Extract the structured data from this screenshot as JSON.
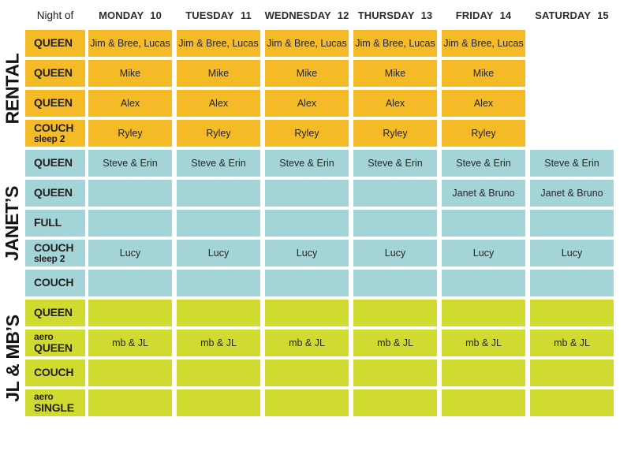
{
  "header": {
    "corner_label": "Night of",
    "days": [
      {
        "name": "MONDAY",
        "date": "10"
      },
      {
        "name": "TUESDAY",
        "date": "11"
      },
      {
        "name": "WEDNESDAY",
        "date": "12"
      },
      {
        "name": "THURSDAY",
        "date": "13"
      },
      {
        "name": "FRIDAY",
        "date": "14"
      },
      {
        "name": "SATURDAY",
        "date": "15"
      }
    ]
  },
  "colors": {
    "rental_orange": "#F5BB26",
    "janets_teal": "#A3D5D8",
    "jl_mbs_green": "#D0DB30",
    "text_dark": "#231F20"
  },
  "sections": [
    {
      "id": "rental",
      "label": "RENTAL",
      "color_key": "rental_orange",
      "rows": [
        {
          "bed": [
            {
              "text": "QUEEN",
              "small": false
            }
          ],
          "cells": [
            "Jim & Bree, Lucas",
            "Jim & Bree, Lucas",
            "Jim & Bree, Lucas",
            "Jim & Bree, Lucas",
            "Jim & Bree, Lucas",
            null
          ]
        },
        {
          "bed": [
            {
              "text": "QUEEN",
              "small": false
            }
          ],
          "cells": [
            "Mike",
            "Mike",
            "Mike",
            "Mike",
            "Mike",
            null
          ]
        },
        {
          "bed": [
            {
              "text": "QUEEN",
              "small": false
            }
          ],
          "cells": [
            "Alex",
            "Alex",
            "Alex",
            "Alex",
            "Alex",
            null
          ]
        },
        {
          "bed": [
            {
              "text": "COUCH",
              "small": false
            },
            {
              "text": "sleep 2",
              "small": true
            }
          ],
          "cells": [
            "Ryley",
            "Ryley",
            "Ryley",
            "Ryley",
            "Ryley",
            null
          ]
        }
      ]
    },
    {
      "id": "janets",
      "label": "JANET’S",
      "color_key": "janets_teal",
      "rows": [
        {
          "bed": [
            {
              "text": "QUEEN",
              "small": false
            }
          ],
          "cells": [
            "Steve & Erin",
            "Steve & Erin",
            "Steve & Erin",
            "Steve & Erin",
            "Steve & Erin",
            "Steve & Erin"
          ]
        },
        {
          "bed": [
            {
              "text": "QUEEN",
              "small": false
            }
          ],
          "cells": [
            "",
            "",
            "",
            "",
            "Janet & Bruno",
            "Janet & Bruno"
          ]
        },
        {
          "bed": [
            {
              "text": "FULL",
              "small": false
            }
          ],
          "cells": [
            "",
            "",
            "",
            "",
            "",
            ""
          ]
        },
        {
          "bed": [
            {
              "text": "COUCH",
              "small": false
            },
            {
              "text": "sleep 2",
              "small": true
            }
          ],
          "cells": [
            "Lucy",
            "Lucy",
            "Lucy",
            "Lucy",
            "Lucy",
            "Lucy"
          ]
        },
        {
          "bed": [
            {
              "text": "COUCH",
              "small": false
            }
          ],
          "cells": [
            "",
            "",
            "",
            "",
            "",
            ""
          ]
        }
      ]
    },
    {
      "id": "jl-mbs",
      "label": "JL & MB’S",
      "color_key": "jl_mbs_green",
      "rows": [
        {
          "bed": [
            {
              "text": "QUEEN",
              "small": false
            }
          ],
          "cells": [
            "",
            "",
            "",
            "",
            "",
            ""
          ]
        },
        {
          "bed": [
            {
              "text": "aero",
              "small": true
            },
            {
              "text": "QUEEN",
              "small": false
            }
          ],
          "cells": [
            "mb & JL",
            "mb & JL",
            "mb & JL",
            "mb & JL",
            "mb & JL",
            "mb & JL"
          ]
        },
        {
          "bed": [
            {
              "text": "COUCH",
              "small": false
            }
          ],
          "cells": [
            "",
            "",
            "",
            "",
            "",
            ""
          ]
        },
        {
          "bed": [
            {
              "text": "aero",
              "small": true
            },
            {
              "text": "SINGLE",
              "small": false
            }
          ],
          "cells": [
            "",
            "",
            "",
            "",
            "",
            ""
          ]
        }
      ]
    }
  ]
}
